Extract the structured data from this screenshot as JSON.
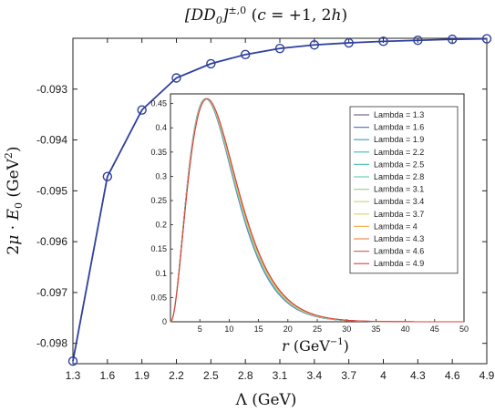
{
  "chart_data": [
    {
      "type": "line",
      "title": "[DD0]±,0 (c = +1, 2h)",
      "xlabel": "Λ (GeV)",
      "ylabel": "2μ · E0 (GeV²)",
      "x": [
        1.3,
        1.6,
        1.9,
        2.2,
        2.5,
        2.8,
        3.1,
        3.4,
        3.7,
        4.0,
        4.3,
        4.6,
        4.9
      ],
      "x_tick_labels": [
        "1.3",
        "1.6",
        "1.9",
        "2.2",
        "2.5",
        "2.8",
        "3.1",
        "3.4",
        "3.7",
        "4",
        "4.3",
        "4.6",
        "4.9"
      ],
      "y_tick_labels": [
        "-0.093",
        "-0.094",
        "-0.095",
        "-0.096",
        "-0.097",
        "-0.098"
      ],
      "y_ticks": [
        -0.093,
        -0.094,
        -0.095,
        -0.096,
        -0.097,
        -0.098
      ],
      "series": [
        {
          "values": [
            -0.09835,
            -0.09472,
            -0.09341,
            -0.09278,
            -0.0925,
            -0.09232,
            -0.0922,
            -0.09213,
            -0.09209,
            -0.09206,
            -0.09204,
            -0.09202,
            -0.09201
          ],
          "color": "#2f3f9e",
          "marker": "circle"
        }
      ],
      "xlim": [
        1.3,
        4.9
      ],
      "ylim": [
        -0.0984,
        -0.092
      ],
      "grid": false
    },
    {
      "type": "line",
      "inset": true,
      "xlabel": "r (GeV⁻¹)",
      "ylabel": "",
      "x_tick_labels": [
        "5",
        "10",
        "15",
        "20",
        "25",
        "30",
        "35",
        "40",
        "45",
        "50"
      ],
      "x_ticks": [
        5,
        10,
        15,
        20,
        25,
        30,
        35,
        40,
        45,
        50
      ],
      "y_tick_labels": [
        "0",
        "0.05",
        "0.1",
        "0.15",
        "0.2",
        "0.25",
        "0.3",
        "0.35",
        "0.4",
        "0.45"
      ],
      "y_ticks": [
        0,
        0.05,
        0.1,
        0.15,
        0.2,
        0.25,
        0.3,
        0.35,
        0.4,
        0.45
      ],
      "xlim": [
        0,
        50
      ],
      "ylim": [
        0,
        0.47
      ],
      "curve_peak_r": 6.0,
      "curve_peak_value": 0.46,
      "legend_position": "top-right",
      "series": [
        {
          "name": "Lambda = 1.3",
          "color": "#7b6c8e"
        },
        {
          "name": "Lambda = 1.6",
          "color": "#5a7fc2"
        },
        {
          "name": "Lambda = 1.9",
          "color": "#3d9bc9"
        },
        {
          "name": "Lambda = 2.2",
          "color": "#41b6c4"
        },
        {
          "name": "Lambda = 2.5",
          "color": "#57c6c2"
        },
        {
          "name": "Lambda = 2.8",
          "color": "#79cfb3"
        },
        {
          "name": "Lambda = 3.1",
          "color": "#a2d596"
        },
        {
          "name": "Lambda = 3.4",
          "color": "#c8d97a"
        },
        {
          "name": "Lambda = 3.7",
          "color": "#e4cf66"
        },
        {
          "name": "Lambda = 4",
          "color": "#f0b45a"
        },
        {
          "name": "Lambda = 4.3",
          "color": "#e9905a"
        },
        {
          "name": "Lambda = 4.6",
          "color": "#d66f62"
        },
        {
          "name": "Lambda = 4.9",
          "color": "#d9403c"
        }
      ]
    }
  ]
}
